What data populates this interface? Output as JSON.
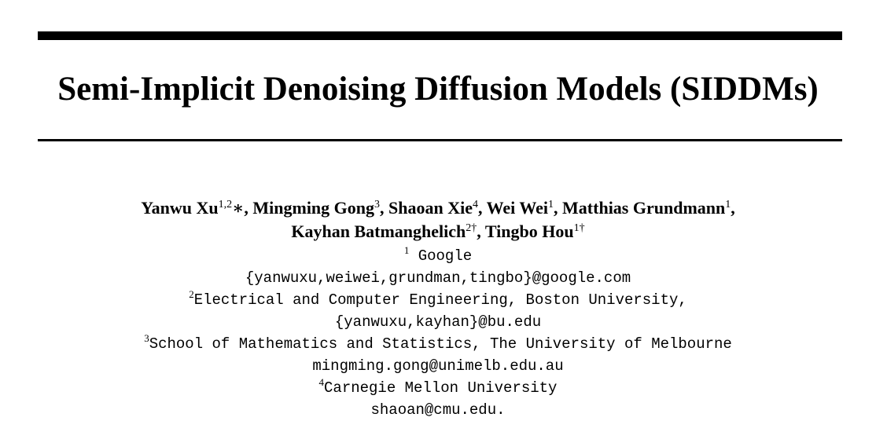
{
  "paper": {
    "title": "Semi-Implicit Denoising Diffusion Models (SIDDMs)",
    "authors": [
      {
        "name": "Yanwu Xu",
        "sup": "1,2",
        "mark": "∗",
        "sep": ", "
      },
      {
        "name": "Mingming Gong",
        "sup": "3",
        "mark": "",
        "sep": ", "
      },
      {
        "name": "Shaoan Xie",
        "sup": "4",
        "mark": "",
        "sep": ", "
      },
      {
        "name": "Wei Wei",
        "sup": "1",
        "mark": "",
        "sep": ", "
      },
      {
        "name": "Matthias Grundmann",
        "sup": "1",
        "mark": "",
        "sep": ","
      },
      {
        "name": "Kayhan Batmanghelich",
        "sup": "2†",
        "mark": "",
        "sep": ", "
      },
      {
        "name": "Tingbo Hou",
        "sup": "1†",
        "mark": "",
        "sep": ""
      }
    ],
    "affiliations": [
      {
        "sup": "1",
        "name": " Google",
        "email": "{yanwuxu,weiwei,grundman,tingbo}@google.com"
      },
      {
        "sup": "2",
        "name": "Electrical and Computer Engineering, Boston University,",
        "email": "{yanwuxu,kayhan}@bu.edu"
      },
      {
        "sup": "3",
        "name": "School of Mathematics and Statistics, The University of Melbourne",
        "email": "mingming.gong@unimelb.edu.au"
      },
      {
        "sup": "4",
        "name": "Carnegie Mellon University",
        "email": "shaoan@cmu.edu."
      }
    ]
  }
}
